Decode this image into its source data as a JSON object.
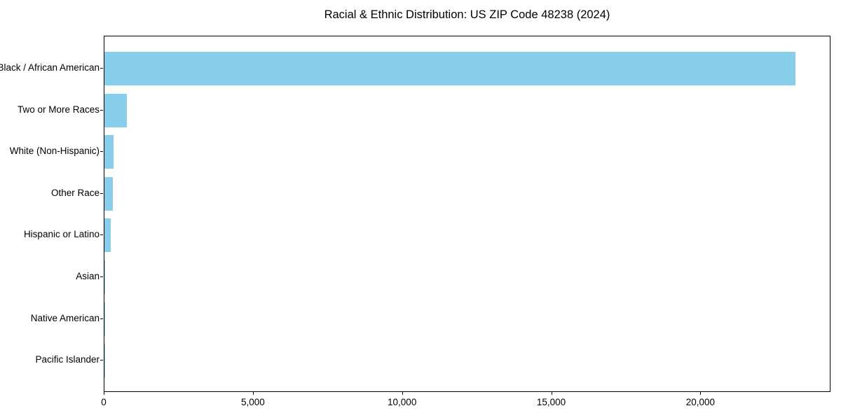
{
  "figure": {
    "background": "#FFFFFF"
  },
  "chart_data": {
    "type": "bar",
    "orientation": "horizontal",
    "title": "Racial & Ethnic Distribution: US ZIP Code 48238 (2024)",
    "categories": [
      "Black / African American",
      "Two or More Races",
      "White (Non-Hispanic)",
      "Other Race",
      "Hispanic or Latino",
      "Asian",
      "Native American",
      "Pacific Islander"
    ],
    "values": [
      23200,
      750,
      310,
      290,
      210,
      35,
      15,
      5
    ],
    "xlabel": "",
    "ylabel": "",
    "xlim": [
      0,
      24360
    ],
    "xticks": [
      0,
      5000,
      10000,
      15000,
      20000
    ],
    "xtick_labels": [
      "0",
      "5,000",
      "10,000",
      "15,000",
      "20,000"
    ],
    "bar_color": "#87CEEB",
    "axis_color": "#000000",
    "text_color": "#000000",
    "grid": false,
    "legend": "none"
  }
}
